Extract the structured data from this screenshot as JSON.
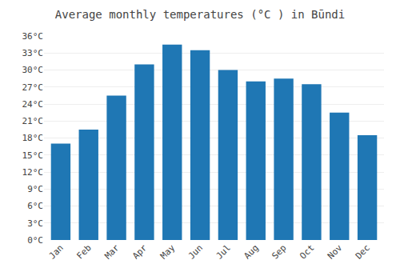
{
  "chart_data": {
    "type": "bar",
    "title": "Average monthly temperatures (°C ) in Būndi",
    "categories": [
      "Jan",
      "Feb",
      "Mar",
      "Apr",
      "May",
      "Jun",
      "Jul",
      "Aug",
      "Sep",
      "Oct",
      "Nov",
      "Dec"
    ],
    "values": [
      17,
      19.5,
      25.5,
      31,
      34.5,
      33.5,
      30,
      28,
      28.5,
      27.5,
      22.5,
      18.5
    ],
    "ylim": [
      0,
      36
    ],
    "yticks": [
      {
        "value": 0,
        "label": "0°C"
      },
      {
        "value": 3,
        "label": "3°C"
      },
      {
        "value": 6,
        "label": "6°C"
      },
      {
        "value": 9,
        "label": "9°C"
      },
      {
        "value": 12,
        "label": "12°C"
      },
      {
        "value": 15,
        "label": "15°C"
      },
      {
        "value": 18,
        "label": "18°C"
      },
      {
        "value": 21,
        "label": "21°C"
      },
      {
        "value": 24,
        "label": "24°C"
      },
      {
        "value": 27,
        "label": "27°C"
      },
      {
        "value": 30,
        "label": "30°C"
      },
      {
        "value": 33,
        "label": "33°C"
      },
      {
        "value": 36,
        "label": "36°C"
      }
    ],
    "grid": true
  }
}
